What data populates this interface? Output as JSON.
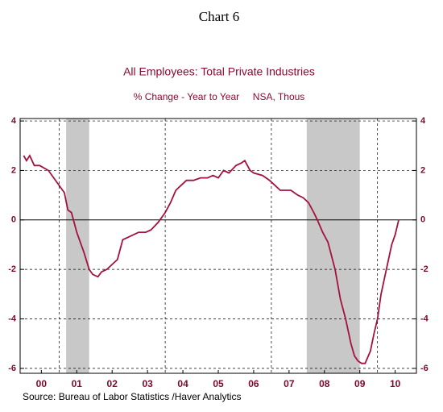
{
  "chart_data": {
    "type": "line",
    "title": "Chart 6",
    "subtitle": "All Employees: Total Private Industries",
    "axis_note": "% Change - Year to Year     NSA, Thous",
    "source": "Source:  Bureau of Labor Statistics /Haver Analytics",
    "x": [
      2000.0,
      2000.08,
      2000.17,
      2000.3,
      2000.45,
      2000.7,
      2000.85,
      2001.05,
      2001.15,
      2001.25,
      2001.35,
      2001.5,
      2001.6,
      2001.7,
      2001.85,
      2001.95,
      2002.1,
      2002.2,
      2002.35,
      2002.5,
      2002.65,
      2002.8,
      2002.95,
      2003.1,
      2003.25,
      2003.45,
      2003.6,
      2003.8,
      2004.0,
      2004.15,
      2004.3,
      2004.45,
      2004.6,
      2004.8,
      2005.0,
      2005.2,
      2005.35,
      2005.5,
      2005.65,
      2005.8,
      2006.0,
      2006.15,
      2006.25,
      2006.4,
      2006.5,
      2006.75,
      2006.95,
      2007.1,
      2007.25,
      2007.4,
      2007.55,
      2007.75,
      2007.9,
      2008.05,
      2008.2,
      2008.3,
      2008.45,
      2008.6,
      2008.8,
      2008.95,
      2009.1,
      2009.25,
      2009.35,
      2009.45,
      2009.55,
      2009.65,
      2009.8,
      2009.9,
      2010.0,
      2010.1,
      2010.25,
      2010.4,
      2010.5,
      2010.6
    ],
    "series": [
      {
        "name": "All Employees: Total Private Industries",
        "color": "#a3123f",
        "values": [
          2.6,
          2.4,
          2.6,
          2.2,
          2.2,
          2.0,
          1.7,
          1.3,
          1.1,
          0.4,
          0.3,
          -0.5,
          -0.9,
          -1.3,
          -2.0,
          -2.2,
          -2.3,
          -2.1,
          -2.0,
          -1.8,
          -1.6,
          -0.8,
          -0.7,
          -0.6,
          -0.5,
          -0.5,
          -0.4,
          -0.1,
          0.3,
          0.7,
          1.2,
          1.4,
          1.6,
          1.6,
          1.7,
          1.7,
          1.8,
          1.7,
          2.0,
          1.9,
          2.2,
          2.3,
          2.4,
          2.0,
          1.9,
          1.8,
          1.6,
          1.4,
          1.2,
          1.2,
          1.2,
          1.0,
          0.9,
          0.7,
          0.3,
          0.0,
          -0.5,
          -0.9,
          -2.0,
          -3.2,
          -4.0,
          -5.0,
          -5.5,
          -5.7,
          -5.8,
          -5.8,
          -5.3,
          -4.6,
          -4.0,
          -3.0,
          -2.0,
          -1.0,
          -0.6,
          0.0
        ]
      }
    ],
    "recessions": [
      [
        2001.2,
        2001.85
      ],
      [
        2008.0,
        2009.5
      ]
    ],
    "xlim": [
      1999.9,
      2011.1
    ],
    "xticks": [
      {
        "value": 2000.5,
        "label": "00"
      },
      {
        "value": 2001.5,
        "label": "01"
      },
      {
        "value": 2002.5,
        "label": "02"
      },
      {
        "value": 2003.5,
        "label": "03"
      },
      {
        "value": 2004.5,
        "label": "04"
      },
      {
        "value": 2005.5,
        "label": "05"
      },
      {
        "value": 2006.5,
        "label": "06"
      },
      {
        "value": 2007.5,
        "label": "07"
      },
      {
        "value": 2008.5,
        "label": "08"
      },
      {
        "value": 2009.5,
        "label": "09"
      },
      {
        "value": 2010.5,
        "label": "10"
      }
    ],
    "xgrid": [
      2001,
      2004,
      2007,
      2010
    ],
    "ylim": [
      -6.2,
      4.1
    ],
    "yticks": [
      -6,
      -4,
      -2,
      0,
      2,
      4
    ],
    "y2lim": [
      -6.2,
      4.1
    ],
    "y2ticks": [
      -6,
      -4,
      -2,
      0,
      2,
      4
    ],
    "grid": true
  }
}
